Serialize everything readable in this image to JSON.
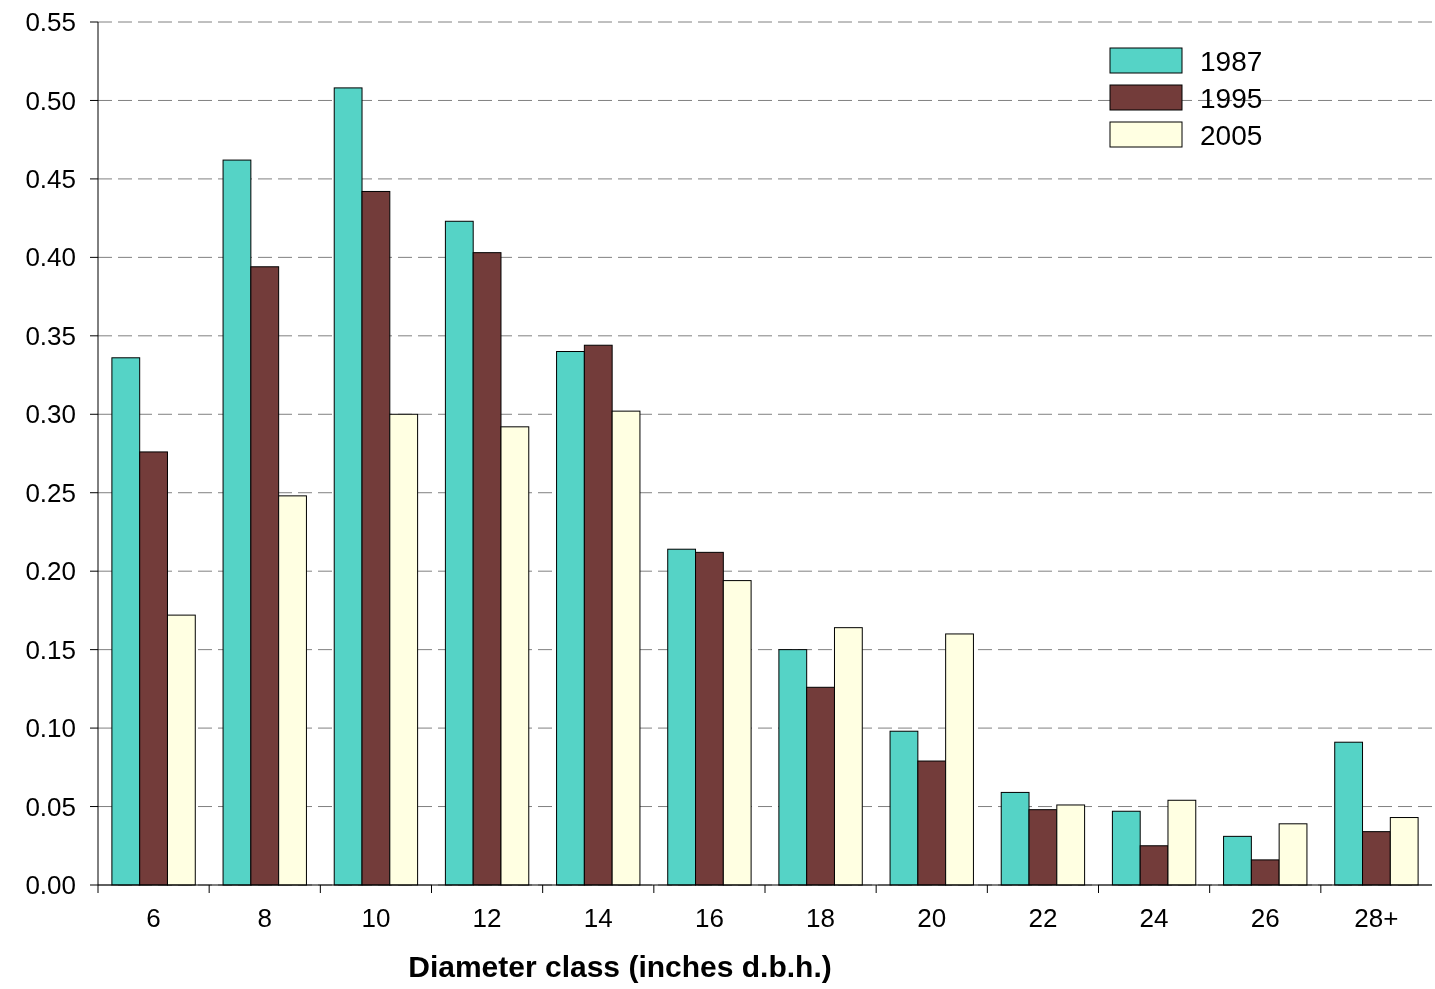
{
  "chart_data": {
    "type": "bar",
    "xlabel": "Diameter class (inches d.b.h.)",
    "categories": [
      "6",
      "8",
      "10",
      "12",
      "14",
      "16",
      "18",
      "20",
      "22",
      "24",
      "26",
      "28+"
    ],
    "series": [
      {
        "name": "1987",
        "color": "#55d3c6",
        "values": [
          0.336,
          0.462,
          0.508,
          0.423,
          0.34,
          0.214,
          0.15,
          0.098,
          0.059,
          0.047,
          0.031,
          0.091
        ]
      },
      {
        "name": "1995",
        "color": "#733c3a",
        "values": [
          0.276,
          0.394,
          0.442,
          0.403,
          0.344,
          0.212,
          0.126,
          0.079,
          0.048,
          0.025,
          0.016,
          0.034
        ]
      },
      {
        "name": "2005",
        "color": "#ffffe2",
        "values": [
          0.172,
          0.248,
          0.3,
          0.292,
          0.302,
          0.194,
          0.164,
          0.16,
          0.051,
          0.054,
          0.039,
          0.043
        ]
      }
    ],
    "ylim": [
      0,
      0.55
    ],
    "yticks": [
      {
        "value": 0,
        "label": "0.00"
      },
      {
        "value": 0.05,
        "label": "0.05"
      },
      {
        "value": 0.1,
        "label": "0.10"
      },
      {
        "value": 0.15,
        "label": "0.15"
      },
      {
        "value": 0.2,
        "label": "0.20"
      },
      {
        "value": 0.25,
        "label": "0.25"
      },
      {
        "value": 0.3,
        "label": "0.30"
      },
      {
        "value": 0.35,
        "label": "0.35"
      },
      {
        "value": 0.4,
        "label": "0.40"
      },
      {
        "value": 0.45,
        "label": "0.45"
      },
      {
        "value": 0.5,
        "label": "0.50"
      },
      {
        "value": 0.55,
        "label": "0.55"
      }
    ],
    "grid": "y",
    "legend": "top right"
  }
}
